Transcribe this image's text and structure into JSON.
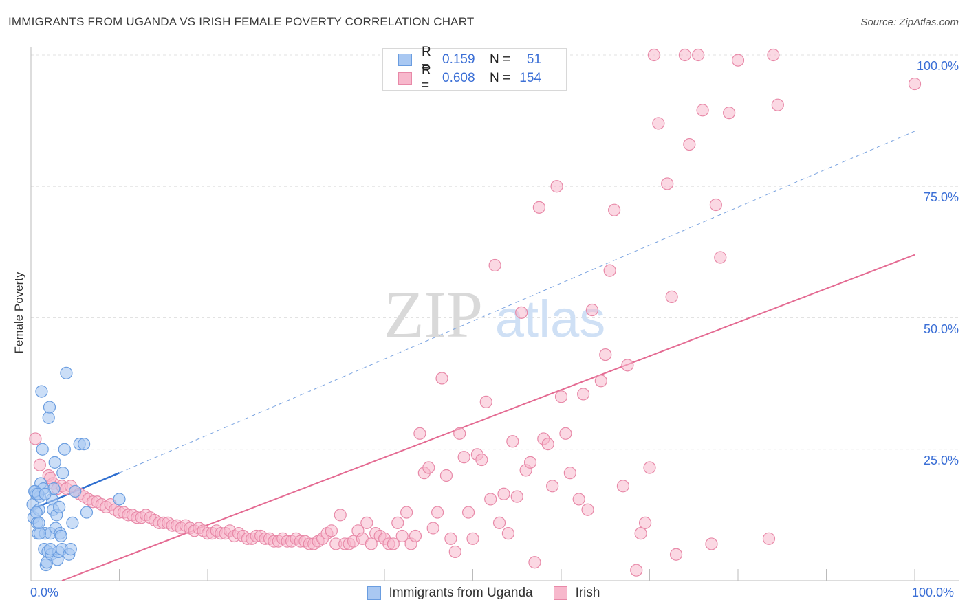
{
  "title": "IMMIGRANTS FROM UGANDA VS IRISH FEMALE POVERTY CORRELATION CHART",
  "source": "Source: ZipAtlas.com",
  "watermark": {
    "zip": "ZIP",
    "atlas": "atlas"
  },
  "legend": {
    "r_label": "R =",
    "n_label": "N =",
    "rows": [
      {
        "r": "0.159",
        "n": "51"
      },
      {
        "r": "0.608",
        "n": "154"
      }
    ]
  },
  "bottom_legend": [
    "Immigrants from Uganda",
    "Irish"
  ],
  "colors": {
    "uganda_fill": "#a9c8f2",
    "uganda_stroke": "#6a9de0",
    "uganda_line": "#2f6fd0",
    "irish_fill": "#f7b8cc",
    "irish_stroke": "#e889a8",
    "irish_line": "#e46a92",
    "tick_text": "#3b6fd6",
    "grid": "#e2e2e2"
  },
  "chart_data": {
    "type": "scatter",
    "title": "IMMIGRANTS FROM UGANDA VS IRISH FEMALE POVERTY CORRELATION CHART",
    "xlabel": "",
    "ylabel": "Female Poverty",
    "xlim": [
      0,
      100
    ],
    "ylim": [
      0,
      100
    ],
    "x_tick_labels": [
      "0.0%",
      "100.0%"
    ],
    "y_tick_labels": [
      "25.0%",
      "50.0%",
      "75.0%",
      "100.0%"
    ],
    "y_ticks": [
      25,
      50,
      75,
      100
    ],
    "grid": true,
    "legend_position": "top-center",
    "series": [
      {
        "name": "Immigrants from Uganda",
        "r": 0.159,
        "n": 51,
        "trend": {
          "x": [
            0,
            10
          ],
          "y": [
            13.5,
            20.5
          ],
          "solid_until": 10,
          "dashed_to": [
            100,
            85.5
          ]
        },
        "points": [
          [
            0.2,
            14.5
          ],
          [
            0.3,
            12
          ],
          [
            0.5,
            17
          ],
          [
            0.6,
            16.5
          ],
          [
            0.7,
            11
          ],
          [
            0.8,
            9
          ],
          [
            0.9,
            13.5
          ],
          [
            1.0,
            16
          ],
          [
            1.1,
            18.5
          ],
          [
            1.2,
            36
          ],
          [
            1.3,
            25
          ],
          [
            1.4,
            17.5
          ],
          [
            1.5,
            6
          ],
          [
            1.6,
            9
          ],
          [
            1.7,
            3
          ],
          [
            1.8,
            3.5
          ],
          [
            1.9,
            5.5
          ],
          [
            2.0,
            31
          ],
          [
            2.1,
            33
          ],
          [
            2.2,
            9
          ],
          [
            2.3,
            5
          ],
          [
            2.4,
            15.5
          ],
          [
            2.5,
            13.5
          ],
          [
            2.6,
            17.5
          ],
          [
            2.7,
            22.5
          ],
          [
            2.8,
            10
          ],
          [
            2.9,
            12.5
          ],
          [
            3.0,
            4
          ],
          [
            3.1,
            5.5
          ],
          [
            3.2,
            14
          ],
          [
            3.3,
            9
          ],
          [
            3.4,
            8.5
          ],
          [
            3.5,
            6
          ],
          [
            3.6,
            20.5
          ],
          [
            3.8,
            25
          ],
          [
            4.0,
            39.5
          ],
          [
            4.3,
            5
          ],
          [
            4.5,
            6
          ],
          [
            4.7,
            11
          ],
          [
            5.0,
            17
          ],
          [
            5.5,
            26
          ],
          [
            6.0,
            26
          ],
          [
            6.3,
            13
          ],
          [
            10.0,
            15.5
          ],
          [
            0.4,
            17
          ],
          [
            0.6,
            13
          ],
          [
            0.8,
            16.5
          ],
          [
            1.0,
            9
          ],
          [
            1.6,
            16.5
          ],
          [
            2.2,
            6
          ],
          [
            0.9,
            11
          ]
        ]
      },
      {
        "name": "Irish",
        "r": 0.608,
        "n": 154,
        "trend": {
          "x": [
            3.5,
            100
          ],
          "y": [
            0,
            62
          ]
        },
        "points": [
          [
            0.5,
            27
          ],
          [
            1.0,
            22
          ],
          [
            2.0,
            20
          ],
          [
            2.5,
            18.5
          ],
          [
            3.0,
            17.5
          ],
          [
            3.5,
            18
          ],
          [
            4.0,
            17.5
          ],
          [
            4.5,
            18
          ],
          [
            5.0,
            17
          ],
          [
            5.5,
            16.5
          ],
          [
            6.0,
            16
          ],
          [
            6.5,
            15.5
          ],
          [
            7.0,
            15
          ],
          [
            7.5,
            15
          ],
          [
            8.0,
            14.5
          ],
          [
            8.5,
            14
          ],
          [
            9.0,
            14.5
          ],
          [
            9.5,
            13.5
          ],
          [
            10.0,
            13
          ],
          [
            10.5,
            13
          ],
          [
            11.0,
            12.5
          ],
          [
            11.5,
            12.5
          ],
          [
            12.0,
            12
          ],
          [
            12.5,
            12
          ],
          [
            13.0,
            12.5
          ],
          [
            13.5,
            12
          ],
          [
            14.0,
            11.5
          ],
          [
            14.5,
            11
          ],
          [
            15.0,
            11
          ],
          [
            15.5,
            11
          ],
          [
            16.0,
            10.5
          ],
          [
            16.5,
            10.5
          ],
          [
            17.0,
            10
          ],
          [
            17.5,
            10.5
          ],
          [
            18.0,
            10
          ],
          [
            18.5,
            9.5
          ],
          [
            19.0,
            10
          ],
          [
            19.5,
            9.5
          ],
          [
            20.0,
            9
          ],
          [
            20.5,
            9
          ],
          [
            21.0,
            9.5
          ],
          [
            21.5,
            9
          ],
          [
            22.0,
            9
          ],
          [
            22.5,
            9.5
          ],
          [
            23.0,
            8.5
          ],
          [
            23.5,
            9
          ],
          [
            24.0,
            8.5
          ],
          [
            24.5,
            8
          ],
          [
            25.0,
            8
          ],
          [
            25.5,
            8.5
          ],
          [
            26.0,
            8.5
          ],
          [
            26.5,
            8
          ],
          [
            27.0,
            8
          ],
          [
            27.5,
            7.5
          ],
          [
            28.0,
            7.5
          ],
          [
            28.5,
            8
          ],
          [
            29.0,
            7.5
          ],
          [
            29.5,
            7.5
          ],
          [
            30.0,
            8
          ],
          [
            30.5,
            7.5
          ],
          [
            31.0,
            7.5
          ],
          [
            31.5,
            7
          ],
          [
            32.0,
            7
          ],
          [
            32.5,
            7.5
          ],
          [
            33.0,
            8
          ],
          [
            33.5,
            9
          ],
          [
            34.0,
            9.5
          ],
          [
            34.5,
            7
          ],
          [
            35.0,
            12.5
          ],
          [
            35.5,
            7
          ],
          [
            36.0,
            7
          ],
          [
            36.5,
            7.5
          ],
          [
            37.0,
            9.5
          ],
          [
            37.5,
            8
          ],
          [
            38.0,
            11
          ],
          [
            38.5,
            7
          ],
          [
            39.0,
            9
          ],
          [
            39.5,
            8.5
          ],
          [
            40.0,
            8
          ],
          [
            40.5,
            7
          ],
          [
            41.0,
            7
          ],
          [
            41.5,
            11
          ],
          [
            42.0,
            8.5
          ],
          [
            42.5,
            13
          ],
          [
            43.0,
            7
          ],
          [
            43.5,
            8.5
          ],
          [
            44.0,
            28
          ],
          [
            44.5,
            20.5
          ],
          [
            45.0,
            21.5
          ],
          [
            45.5,
            10
          ],
          [
            46.0,
            13
          ],
          [
            46.5,
            38.5
          ],
          [
            47.0,
            20
          ],
          [
            47.5,
            8
          ],
          [
            48.0,
            5.5
          ],
          [
            48.5,
            28
          ],
          [
            49.0,
            23.5
          ],
          [
            49.5,
            13
          ],
          [
            50.0,
            8
          ],
          [
            50.5,
            24
          ],
          [
            51.0,
            23
          ],
          [
            51.5,
            34
          ],
          [
            52.0,
            15.5
          ],
          [
            52.5,
            60
          ],
          [
            53.0,
            11
          ],
          [
            53.5,
            16.5
          ],
          [
            54.0,
            9
          ],
          [
            54.5,
            26.5
          ],
          [
            55.0,
            16
          ],
          [
            55.5,
            51
          ],
          [
            56.0,
            21
          ],
          [
            56.5,
            22.5
          ],
          [
            57.0,
            3.5
          ],
          [
            57.5,
            71
          ],
          [
            58.0,
            27
          ],
          [
            58.5,
            26
          ],
          [
            59.0,
            18
          ],
          [
            59.5,
            75
          ],
          [
            60.0,
            35
          ],
          [
            60.5,
            28
          ],
          [
            61.0,
            20.5
          ],
          [
            62.0,
            15.5
          ],
          [
            62.5,
            35.5
          ],
          [
            63.0,
            13.5
          ],
          [
            63.5,
            51.5
          ],
          [
            64.5,
            38
          ],
          [
            65.0,
            43
          ],
          [
            65.5,
            59
          ],
          [
            66.0,
            70.5
          ],
          [
            67.0,
            18
          ],
          [
            67.5,
            41
          ],
          [
            68.5,
            2
          ],
          [
            69.0,
            9
          ],
          [
            69.5,
            11
          ],
          [
            70.0,
            21.5
          ],
          [
            70.5,
            100
          ],
          [
            71.0,
            87
          ],
          [
            72.0,
            75.5
          ],
          [
            72.5,
            54
          ],
          [
            73.0,
            5
          ],
          [
            74.0,
            100
          ],
          [
            74.5,
            83
          ],
          [
            75.5,
            100
          ],
          [
            76.0,
            89.5
          ],
          [
            77.0,
            7
          ],
          [
            77.5,
            71.5
          ],
          [
            78.0,
            61.5
          ],
          [
            79.0,
            89
          ],
          [
            80.0,
            99
          ],
          [
            83.5,
            8
          ],
          [
            84.0,
            100
          ],
          [
            84.5,
            90.5
          ],
          [
            100.0,
            94.5
          ],
          [
            2.2,
            19.5
          ]
        ]
      }
    ]
  }
}
